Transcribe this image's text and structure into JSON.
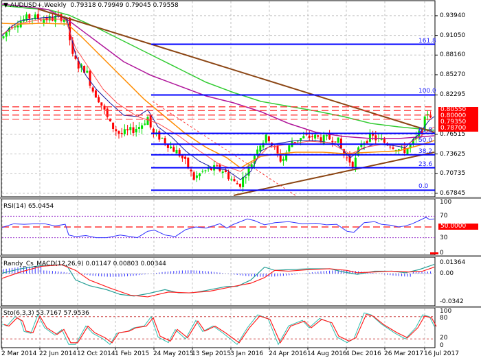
{
  "window": {
    "symbol_title": "AUDUSD+,Weekly",
    "ohlc": "0.79318 0.79949 0.79045 0.79558"
  },
  "colors": {
    "bull_candle": "#00e000",
    "bear_candle": "#ff0000",
    "fib_line": "#0000ff",
    "trend_line": "#8b4513",
    "ma_green": "#33cc33",
    "ma_magenta": "#b0179b",
    "ma_orange": "#ff8c00",
    "ma_blue_fast": "#1a1aa0",
    "ma_red_fast": "#ff5050",
    "resistance_dashed": "#ff3333",
    "rsi_line": "#3030ff",
    "macd_hist": "#3030ff",
    "macd_main": "#2aa198",
    "macd_signal": "#ff2020",
    "stoch_main": "#30c0b0",
    "stoch_signal": "#ff2020",
    "grid": "#c0c0c0"
  },
  "main_pane": {
    "price_axis": [
      "0.93940",
      "0.91050",
      "0.88160",
      "0.85270",
      "0.82295",
      "0.76515",
      "0.73625",
      "0.70735",
      "0.67845"
    ],
    "red_tags": [
      "0.80550",
      "0.80000",
      "0.79350",
      "0.78700"
    ],
    "fib_levels": [
      {
        "label": "161.8",
        "price": 0.8975
      },
      {
        "label": "100.0",
        "price": 0.823
      },
      {
        "label": "61.8",
        "price": 0.7665
      },
      {
        "label": "50.0",
        "price": 0.7506
      },
      {
        "label": "38.2",
        "price": 0.735
      },
      {
        "label": "23.6",
        "price": 0.716
      },
      {
        "label": "0.0",
        "price": 0.683
      }
    ]
  },
  "rsi_pane": {
    "title": "RSI(14) 65.0454",
    "axis": [
      "100",
      "70",
      "50.0000",
      "30",
      "0"
    ]
  },
  "macd_pane": {
    "title": "Randy_Cs_MACD(12,26,9) 0.01147 0.00803 0.00344",
    "axis": [
      "0.01364",
      "0.00",
      "-0.0342"
    ]
  },
  "stoch_pane": {
    "title": "Sto(6,3,3) 53.7167 57.9536",
    "axis": [
      "100",
      "80",
      "20",
      "0"
    ]
  },
  "time_axis": [
    "2 Mar 2014",
    "22 Jun 2014",
    "12 Oct 2014",
    "1 Feb 2015",
    "24 May 2015",
    "13 Sep 2015",
    "3 Jan 2016",
    "24 Apr 2016",
    "14 Aug 2016",
    "4 Dec 2016",
    "26 Mar 2017",
    "16 Jul 2017"
  ],
  "chart_data": {
    "type": "candlestick",
    "title": "AUDUSD+,Weekly",
    "last_ohlc": {
      "open": 0.79318,
      "high": 0.79949,
      "low": 0.79045,
      "close": 0.79558
    },
    "x": [
      "2 Mar 2014",
      "22 Jun 2014",
      "12 Oct 2014",
      "1 Feb 2015",
      "24 May 2015",
      "13 Sep 2015",
      "3 Jan 2016",
      "24 Apr 2016",
      "14 Aug 2016",
      "4 Dec 2016",
      "26 Mar 2017",
      "16 Jul 2017"
    ],
    "approx_close": [
      0.905,
      0.935,
      0.87,
      0.78,
      0.77,
      0.712,
      0.7,
      0.76,
      0.765,
      0.735,
      0.76,
      0.795
    ],
    "ylim": [
      0.675,
      0.96
    ],
    "y_ticks": [
      0.9394,
      0.9105,
      0.8816,
      0.8527,
      0.82295,
      0.76515,
      0.73625,
      0.70735,
      0.67845
    ],
    "horizontal_resistance": [
      0.8055,
      0.8,
      0.7935,
      0.787
    ],
    "fibonacci": {
      "161.8": 0.8975,
      "100.0": 0.823,
      "61.8": 0.7665,
      "50.0": 0.7506,
      "38.2": 0.735,
      "23.6": 0.716,
      "0.0": 0.683
    },
    "indicators": [
      {
        "name": "RSI(14)",
        "value": 65.0454,
        "levels": [
          30,
          50,
          70
        ],
        "range": [
          0,
          100
        ]
      },
      {
        "name": "Randy_Cs_MACD(12,26,9)",
        "values": [
          0.01147,
          0.00803,
          0.00344
        ],
        "range": [
          -0.0342,
          0.01364
        ]
      },
      {
        "name": "Sto(6,3,3)",
        "values": [
          53.7167,
          57.9536
        ],
        "levels": [
          20,
          80
        ],
        "range": [
          0,
          100
        ]
      }
    ],
    "grid": true
  }
}
